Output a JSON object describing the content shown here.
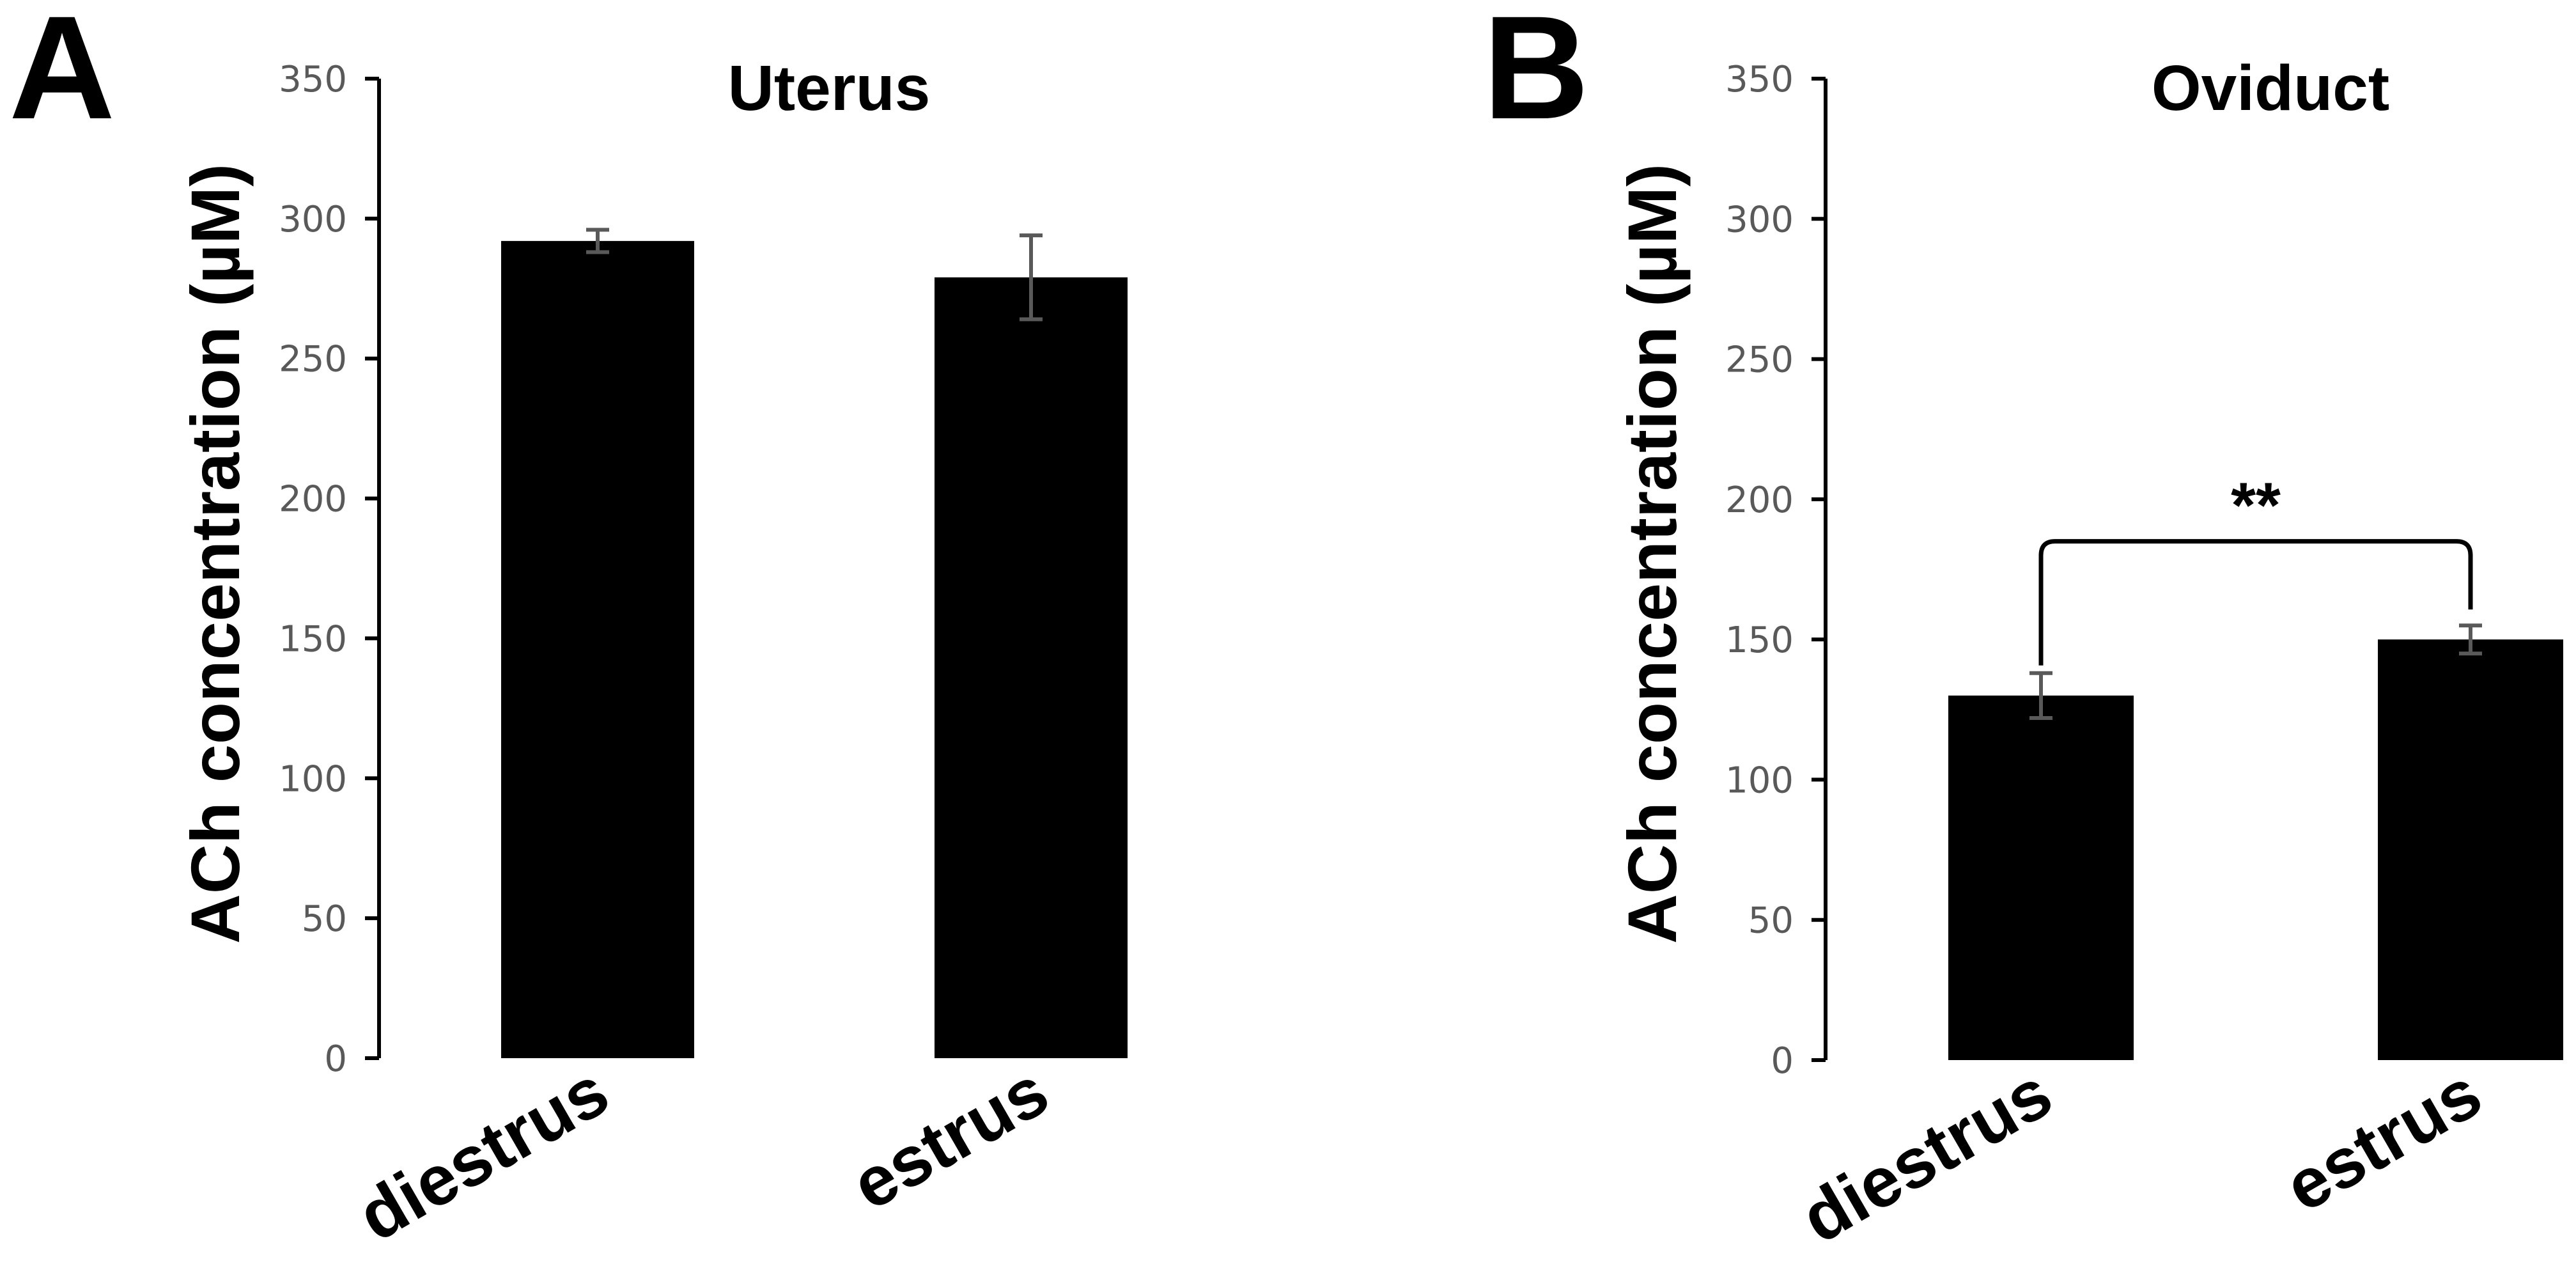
{
  "chart_data": [
    {
      "type": "bar",
      "panel": "A",
      "title": "Uterus",
      "ylabel": "ACh concentration (µM)",
      "xlabel": "",
      "ylim": [
        0,
        350
      ],
      "yticks": [
        0,
        50,
        100,
        150,
        200,
        250,
        300,
        350
      ],
      "categories": [
        "diestrus",
        "estrus"
      ],
      "values": [
        292,
        279
      ],
      "errors": [
        4,
        15
      ],
      "colors": {
        "bar": "#000000",
        "error": "#595959",
        "axis": "#000000"
      },
      "grid": false,
      "significance": null
    },
    {
      "type": "bar",
      "panel": "B",
      "title": "Oviduct",
      "ylabel": "ACh concentration (µM)",
      "xlabel": "",
      "ylim": [
        0,
        350
      ],
      "yticks": [
        0,
        50,
        100,
        150,
        200,
        250,
        300,
        350
      ],
      "categories": [
        "diestrus",
        "estrus"
      ],
      "values": [
        130,
        150
      ],
      "errors": [
        8,
        5
      ],
      "colors": {
        "bar": "#000000",
        "error": "#595959",
        "axis": "#000000"
      },
      "grid": false,
      "significance": {
        "label": "**",
        "between": [
          "diestrus",
          "estrus"
        ],
        "bracket_y": 185
      }
    }
  ]
}
